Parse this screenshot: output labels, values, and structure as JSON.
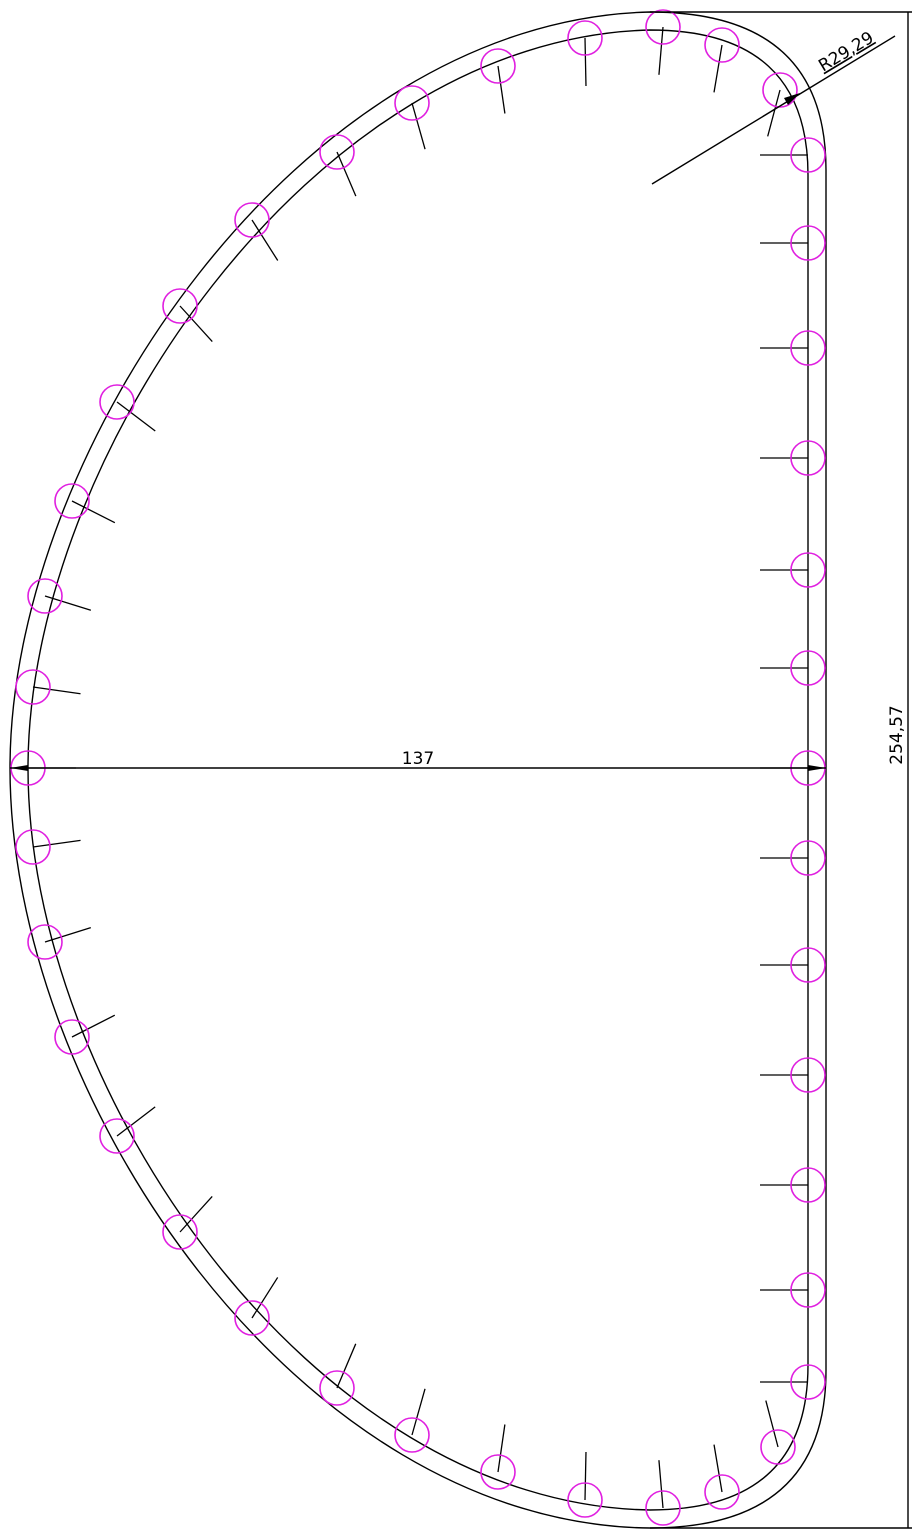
{
  "dimensions": {
    "radius": "R29,29",
    "width": "137",
    "height": "254,57"
  }
}
